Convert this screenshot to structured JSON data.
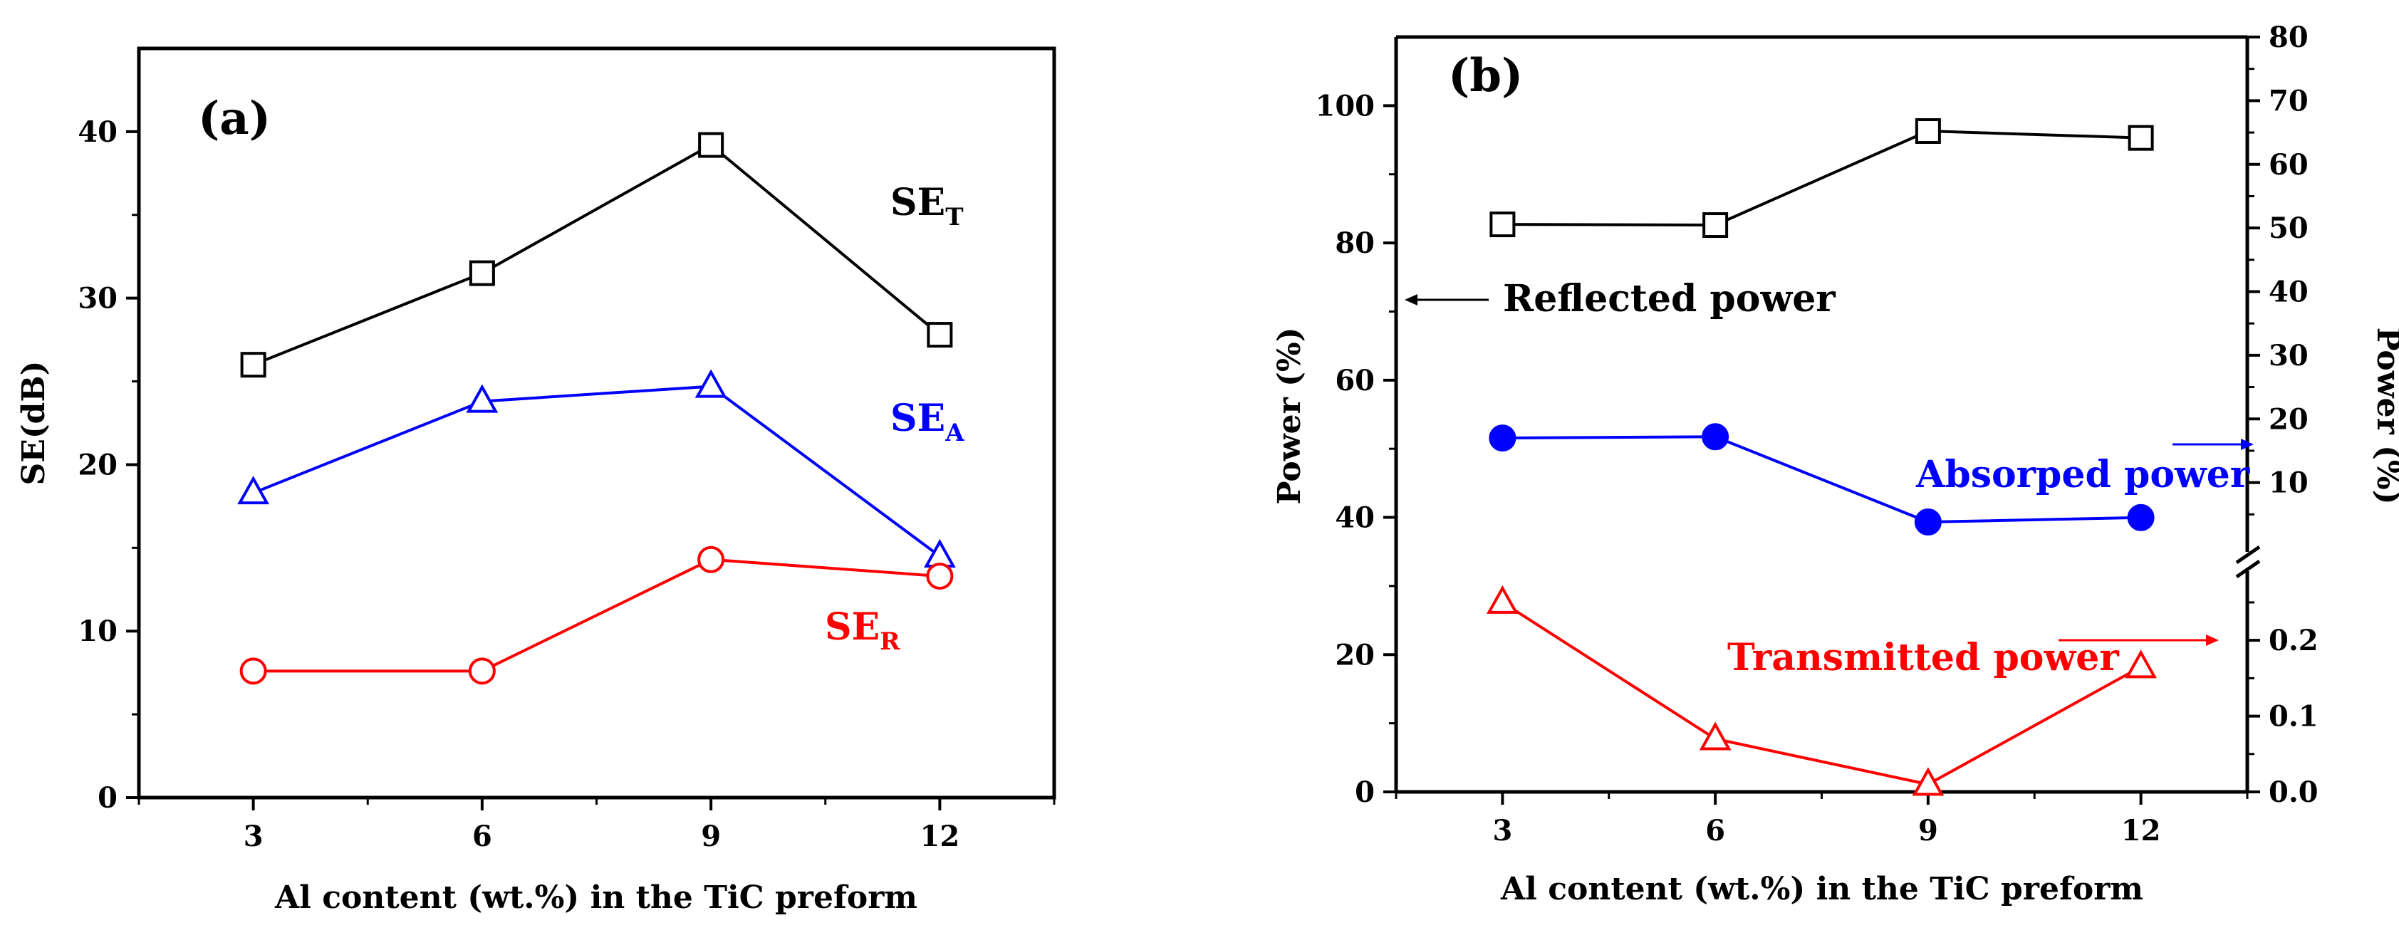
{
  "chart_data": [
    {
      "type": "line",
      "panel_label": "(a)",
      "xlabel": "Al content (wt.%) in the TiC preform",
      "ylabel": "SE(dB)",
      "x": [
        3,
        6,
        9,
        12
      ],
      "xticks": [
        "3",
        "6",
        "9",
        "12"
      ],
      "xlim": [
        1.5,
        13.5
      ],
      "ylim": [
        0,
        45
      ],
      "yticks": [
        "0",
        "10",
        "20",
        "30",
        "40"
      ],
      "series": [
        {
          "name": "SE_T",
          "label_main": "SE",
          "label_sub": "T",
          "color": "#000000",
          "marker": "square",
          "values": [
            26.0,
            31.5,
            39.2,
            27.8
          ]
        },
        {
          "name": "SE_A",
          "label_main": "SE",
          "label_sub": "A",
          "color": "#0000ff",
          "marker": "triangle",
          "values": [
            18.3,
            23.8,
            24.7,
            14.5
          ]
        },
        {
          "name": "SE_R",
          "label_main": "SE",
          "label_sub": "R",
          "color": "#ff0000",
          "marker": "circle",
          "values": [
            7.6,
            7.6,
            14.3,
            13.3
          ]
        }
      ]
    },
    {
      "type": "line",
      "panel_label": "(b)",
      "xlabel": "Al content (wt.%) in the TiC preform",
      "ylabel_left": "Power (%)",
      "ylabel_right": "Power (%)",
      "x": [
        3,
        6,
        9,
        12
      ],
      "xticks": [
        "3",
        "6",
        "9",
        "12"
      ],
      "xlim": [
        1.5,
        13.5
      ],
      "ylim_left": [
        0,
        110
      ],
      "yticks_left": [
        "0",
        "20",
        "40",
        "60",
        "80",
        "100"
      ],
      "right_axis_upper": {
        "ylim": [
          0,
          80
        ],
        "yticks": [
          "10",
          "20",
          "30",
          "40",
          "50",
          "60",
          "70",
          "80"
        ]
      },
      "right_axis_lower": {
        "ylim": [
          0,
          0.28
        ],
        "yticks": [
          "0.0",
          "0.1",
          "0.2"
        ]
      },
      "series": [
        {
          "name": "Reflected power",
          "axis": "left",
          "color": "#000000",
          "marker": "square",
          "values": [
            82.7,
            82.6,
            96.3,
            95.3
          ]
        },
        {
          "name": "Absorped power",
          "axis": "right-upper",
          "color": "#0000ff",
          "marker": "filled-circle",
          "values": [
            17.0,
            17.2,
            3.8,
            4.5
          ]
        },
        {
          "name": "Transmitted power",
          "axis": "right-lower",
          "color": "#ff0000",
          "marker": "triangle",
          "values": [
            0.25,
            0.07,
            0.01,
            0.165
          ]
        }
      ],
      "annotations": [
        {
          "text": "Reflected power",
          "color": "#000000",
          "arrow": "left"
        },
        {
          "text": "Absorped power",
          "color": "#0000ff",
          "arrow": "right"
        },
        {
          "text": "Transmitted power",
          "color": "#ff0000",
          "arrow": "right"
        }
      ]
    }
  ]
}
